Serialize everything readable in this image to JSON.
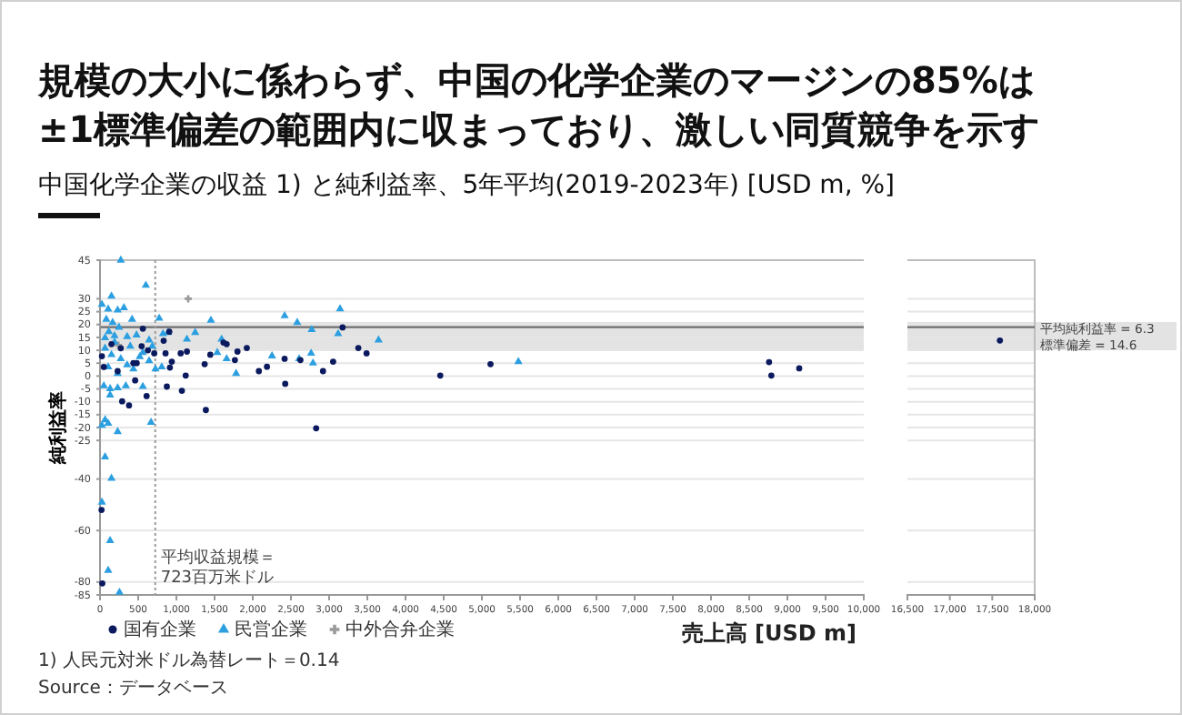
{
  "chart_data": [
    {
      "type": "scatter",
      "title": "規模の大小に係わらず、中国の化学企業のマージンの85%は\n±1標準偏差の範囲内に収まっており、激しい同質競争を示す",
      "subtitle": "中国化学企業の収益 1) と純利益率、5年平均(2019-2023年) [USD m, %]",
      "xlabel": "売上高 [USD m]",
      "ylabel": "純利益率",
      "annotations": [
        "1) 人民元対米ドル為替レート＝0.14",
        "Source：データベース"
      ],
      "xlim": [
        0,
        10000
      ],
      "xticks": [
        0,
        500,
        {
          "value": 1000,
          "label": "1,000"
        },
        {
          "value": 1500,
          "label": "1,500"
        },
        {
          "value": 2000,
          "label": "2,000"
        },
        {
          "value": 2500,
          "label": "2,500"
        },
        {
          "value": 3000,
          "label": "3,000"
        },
        {
          "value": 3500,
          "label": "3,500"
        },
        {
          "value": 4000,
          "label": "4,000"
        },
        {
          "value": 4500,
          "label": "4,500"
        },
        {
          "value": 5000,
          "label": "5,000"
        },
        {
          "value": 5500,
          "label": "5,500"
        },
        {
          "value": 6000,
          "label": "6,000"
        },
        {
          "value": 6500,
          "label": "6,500"
        },
        {
          "value": 7000,
          "label": "7,000"
        },
        {
          "value": 7500,
          "label": "7,500"
        },
        {
          "value": 8000,
          "label": "8,000"
        },
        {
          "value": 8500,
          "label": "8,500"
        },
        {
          "value": 9000,
          "label": "9,000"
        },
        {
          "value": 9500,
          "label": "9,500"
        },
        {
          "value": 10000,
          "label": "10,000"
        }
      ],
      "ylim": [
        -85,
        45
      ],
      "yticks": [
        45,
        30,
        25,
        20,
        15,
        10,
        5,
        0,
        -5,
        -10,
        -15,
        -20,
        -25,
        -40,
        -60,
        -80,
        -85
      ],
      "grid": "y",
      "legend": "bottom left",
      "ref_lines": [
        {
          "axis": "y",
          "value": 19,
          "color": "#6e6e6e"
        },
        {
          "axis": "x",
          "value": 723,
          "label": "平均収益規模＝\n723百万米ドル",
          "color": "#9a9a9a",
          "line_style": "dotted"
        }
      ],
      "bands": [
        {
          "axis": "y",
          "from": 10,
          "to": 21,
          "color": "#e3e3e3"
        }
      ],
      "series": [
        {
          "name": "国有企業",
          "color": "#0b1a5e",
          "marker": "circle",
          "x": [
            561,
            25,
            50,
            460,
            290,
            380,
            610,
            480,
            545,
            627,
            710,
            833,
            907,
            858,
            940,
            915,
            875,
            1056,
            1122,
            1072,
            1138,
            1386,
            1370,
            1444,
            1617,
            1658,
            1766,
            1800,
            1922,
            2080,
            2186,
            2425,
            2417,
            2624,
            2830,
            2920,
            3052,
            3176,
            3382,
            3490,
            4455,
            5113,
            8760,
            8790,
            9155,
            150,
            272,
            437,
            231,
            20,
            30
          ],
          "values": [
            18.4,
            7.7,
            3.5,
            -1.7,
            -9.8,
            -11.4,
            -7.8,
            5,
            11.6,
            10,
            8.8,
            13.7,
            17.2,
            8.8,
            5.6,
            3.3,
            -4.1,
            8.8,
            0.2,
            -5.7,
            9.5,
            -13.2,
            4.6,
            8.3,
            13,
            12.4,
            6.2,
            9.5,
            10.9,
            1.9,
            3.6,
            -3,
            6.7,
            6.2,
            -20.3,
            1.9,
            5.6,
            18.9,
            10.9,
            8.8,
            0.2,
            4.6,
            5.4,
            0.2,
            3,
            12.4,
            10.8,
            5,
            1.9,
            -52,
            -80.5
          ]
        },
        {
          "name": "民営企業",
          "color": "#2b9fe0",
          "marker": "triangle",
          "x": [
            272,
            600,
            150,
            25,
            107,
            231,
            313,
            420,
            775,
            82,
            165,
            115,
            248,
            66,
            190,
            355,
            478,
            643,
            825,
            890,
            1138,
            1246,
            1452,
            1592,
            1535,
            1658,
            1782,
            2252,
            2417,
            2582,
            2772,
            2764,
            2789,
            2607,
            3118,
            3143,
            3647,
            5478,
            50,
            132,
            231,
            338,
            561,
            132,
            668,
            231,
            66,
            107,
            25,
            66,
            150,
            25,
            132,
            107,
            255,
            66,
            150,
            272,
            355,
            107,
            231,
            437,
            520,
            643,
            726,
            808,
            190,
            396,
            561,
            685
          ],
          "values": [
            45,
            35.2,
            31,
            27.8,
            26,
            25.6,
            26.5,
            22,
            22.4,
            22,
            20.8,
            17.2,
            18.9,
            14.8,
            13.2,
            15.3,
            15.9,
            14,
            16.4,
            16.9,
            14.3,
            16.9,
            21.6,
            14.3,
            9.1,
            6.7,
            1,
            7.8,
            23.4,
            20.8,
            18,
            8.8,
            5,
            6.7,
            16.4,
            26.1,
            14,
            5.6,
            -3.8,
            -4.9,
            -4.6,
            -3.8,
            -4.1,
            -7.4,
            -18,
            -21.6,
            -17,
            -18.4,
            -19.2,
            -31.4,
            -39.7,
            -49,
            -63.9,
            -75.5,
            -84,
            10.8,
            8.3,
            6.7,
            4.3,
            3.5,
            1,
            2.7,
            7.5,
            5.9,
            2.7,
            3.5,
            15.6,
            11.6,
            9.1,
            11.6
          ]
        },
        {
          "name": "中外合弁企業",
          "color": "#9a9a9a",
          "marker": "cross",
          "x": [
            1155,
            240
          ],
          "values": [
            30,
            12
          ]
        }
      ]
    },
    {
      "type": "scatter",
      "xlim": [
        16500,
        18000
      ],
      "xticks": [
        {
          "value": 16500,
          "label": "16,500"
        },
        {
          "value": 17000,
          "label": "17,000"
        },
        {
          "value": 17500,
          "label": "17,500"
        },
        {
          "value": 18000,
          "label": "18,000"
        }
      ],
      "ylim": [
        -85,
        45
      ],
      "yticks": [
        45,
        30,
        25,
        20,
        15,
        10,
        5,
        0,
        -5,
        -10,
        -15,
        -20,
        -25,
        -40,
        -60,
        -80,
        -85
      ],
      "tick_labels": "x",
      "grid": "y",
      "ref_lines": [
        {
          "axis": "y",
          "value": 19,
          "color": "#6e6e6e"
        }
      ],
      "bands": [
        {
          "axis": "y",
          "from": 10,
          "to": 21,
          "label": "平均純利益率 = 6.3\n標準偏差 = 14.6",
          "color": "#e3e3e3"
        }
      ],
      "series": [
        {
          "color": "#0b1a5e",
          "marker": "circle",
          "x": [
            17590
          ],
          "values": [
            13.8
          ]
        }
      ]
    }
  ]
}
